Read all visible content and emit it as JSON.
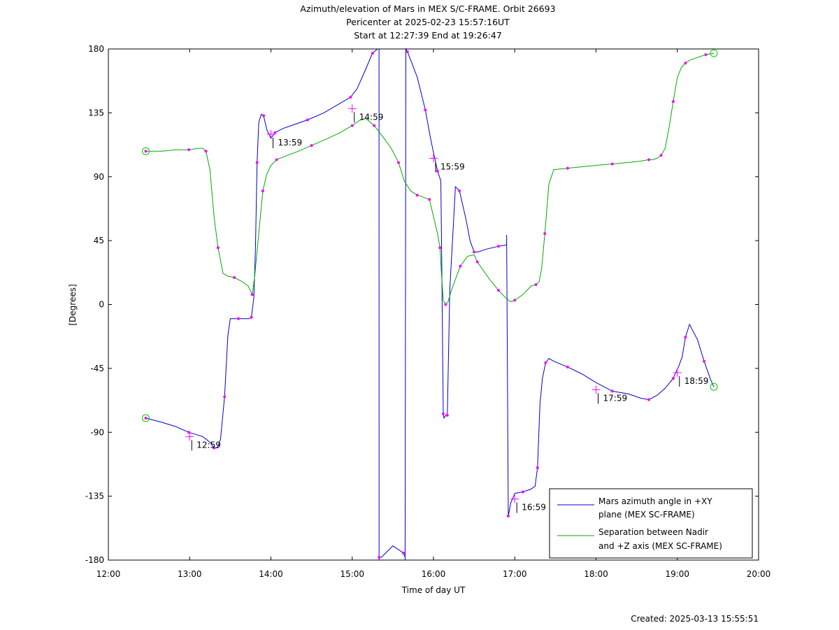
{
  "chart_data": {
    "type": "line",
    "title_lines": [
      "Azimuth/elevation of Mars in MEX S/C-FRAME.  Orbit 26693",
      "Pericenter at 2025-02-23 15:57:16UT",
      "Start at 12:27:39 End at 19:26:47"
    ],
    "xlabel": "Time of day UT",
    "ylabel": "[Degrees]",
    "xlim_hours": [
      12,
      20
    ],
    "ylim": [
      -180,
      180
    ],
    "x_ticks": [
      "12:00",
      "13:00",
      "14:00",
      "15:00",
      "16:00",
      "17:00",
      "18:00",
      "19:00",
      "20:00"
    ],
    "y_ticks": [
      180,
      135,
      90,
      45,
      0,
      -45,
      -90,
      -135,
      -180
    ],
    "legend_placement": "bottom-right",
    "series": [
      {
        "name": "Mars azimuth angle in +XY plane (MEX SC-FRAME)",
        "legend_lines": [
          "Mars azimuth angle in +XY",
          "plane (MEX SC-FRAME)"
        ],
        "color": "#0000cc",
        "x": [
          12.46,
          12.66,
          12.83,
          12.99,
          13.16,
          13.25,
          13.3,
          13.34,
          13.38,
          13.43,
          13.47,
          13.5,
          13.6,
          13.68,
          13.73,
          13.76,
          13.79,
          13.81,
          13.83,
          13.85,
          13.88,
          13.91,
          13.95,
          14.0,
          14.05,
          14.15,
          14.3,
          14.45,
          14.65,
          14.83,
          14.98,
          15.06,
          15.16,
          15.25,
          15.31,
          15.33,
          15.331,
          15.36,
          15.5,
          15.63,
          15.651,
          15.66,
          15.68,
          15.72,
          15.8,
          15.9,
          15.96,
          16.0,
          16.05,
          16.09,
          16.1,
          16.12,
          16.13,
          16.15,
          16.17,
          16.2,
          16.27,
          16.32,
          16.4,
          16.45,
          16.5,
          16.55,
          16.65,
          16.8,
          16.9,
          16.9001,
          16.92,
          16.95,
          17.0,
          17.1,
          17.2,
          17.25,
          17.28,
          17.31,
          17.34,
          17.38,
          17.42,
          17.48,
          17.65,
          17.83,
          18.0,
          18.2,
          18.4,
          18.55,
          18.65,
          18.75,
          18.85,
          18.95,
          19.02,
          19.06,
          19.1,
          19.15,
          19.25,
          19.33,
          19.41,
          19.45
        ],
        "y": [
          -80,
          -83,
          -86,
          -90,
          -93,
          -97,
          -101,
          -101,
          -95,
          -65,
          -22,
          -10,
          -10,
          -10,
          -10,
          -9,
          5,
          40,
          100,
          128,
          134,
          133,
          123,
          117,
          121,
          124,
          127,
          130,
          135,
          141,
          146,
          152,
          165,
          177,
          180,
          180,
          -178,
          -178,
          -170,
          -175,
          -178,
          180,
          178,
          172,
          160,
          137,
          118,
          107,
          94,
          87,
          40,
          -77,
          -80,
          -78,
          -78,
          10,
          83,
          80,
          60,
          45,
          37,
          37,
          39,
          41,
          42,
          49,
          -149,
          -140,
          -133,
          -132,
          -130,
          -128,
          -115,
          -70,
          -52,
          -41,
          -38,
          -40,
          -44,
          -49,
          -55,
          -61,
          -63,
          -66,
          -67,
          -64,
          -59,
          -52,
          -43,
          -37,
          -23,
          -14,
          -25,
          -40,
          -53,
          -58
        ]
      },
      {
        "name": "Separation between Nadir and +Z axis (MEX SC-FRAME)",
        "legend_lines": [
          "Separation between Nadir",
          "and +Z axis (MEX SC-FRAME)"
        ],
        "color": "#00aa00",
        "x": [
          12.46,
          12.66,
          12.83,
          12.99,
          13.11,
          13.16,
          13.2,
          13.25,
          13.3,
          13.35,
          13.41,
          13.47,
          13.55,
          13.65,
          13.72,
          13.77,
          13.8,
          13.85,
          13.9,
          13.95,
          14.0,
          14.07,
          14.2,
          14.34,
          14.5,
          14.7,
          14.85,
          15.0,
          15.1,
          15.17,
          15.27,
          15.38,
          15.48,
          15.57,
          15.64,
          15.72,
          15.8,
          15.86,
          15.9,
          15.95,
          16.0,
          16.05,
          16.08,
          16.1,
          16.12,
          16.15,
          16.18,
          16.22,
          16.33,
          16.42,
          16.5,
          16.54,
          16.6,
          16.7,
          16.8,
          16.9,
          16.95,
          17.0,
          17.1,
          17.2,
          17.26,
          17.3,
          17.33,
          17.37,
          17.42,
          17.48,
          17.65,
          17.83,
          18.0,
          18.2,
          18.4,
          18.55,
          18.65,
          18.7,
          18.75,
          18.8,
          18.85,
          18.9,
          18.95,
          19.0,
          19.05,
          19.1,
          19.15,
          19.25,
          19.35,
          19.45
        ],
        "y": [
          108,
          108,
          109,
          109,
          110,
          110,
          108,
          95,
          62,
          40,
          22,
          20,
          19,
          16,
          13,
          7,
          20,
          50,
          80,
          92,
          98,
          102,
          105,
          108,
          112,
          117,
          121,
          126,
          130,
          131,
          126,
          118,
          110,
          100,
          87,
          80,
          77,
          76,
          75,
          74,
          62,
          50,
          40,
          20,
          3,
          0,
          2,
          10,
          27,
          34,
          35,
          30,
          25,
          17,
          10,
          4,
          2,
          3,
          7,
          13,
          14,
          16,
          25,
          50,
          85,
          95,
          96,
          97,
          98,
          99,
          100,
          101,
          102,
          102,
          103,
          105,
          110,
          125,
          143,
          160,
          167,
          170,
          172,
          174,
          176,
          177
        ]
      }
    ],
    "hour_labels": [
      {
        "text": "12:59",
        "x": 13.0,
        "y": -93
      },
      {
        "text": "13:59",
        "x": 14.0,
        "y": 120
      },
      {
        "text": "14:59",
        "x": 15.0,
        "y": 138
      },
      {
        "text": "15:59",
        "x": 16.0,
        "y": 103
      },
      {
        "text": "16:59",
        "x": 17.0,
        "y": -137
      },
      {
        "text": "17:59",
        "x": 18.0,
        "y": -60
      },
      {
        "text": "18:59",
        "x": 19.0,
        "y": -48
      }
    ]
  },
  "footer": {
    "created": "Created: 2025-03-13 15:55:51"
  }
}
